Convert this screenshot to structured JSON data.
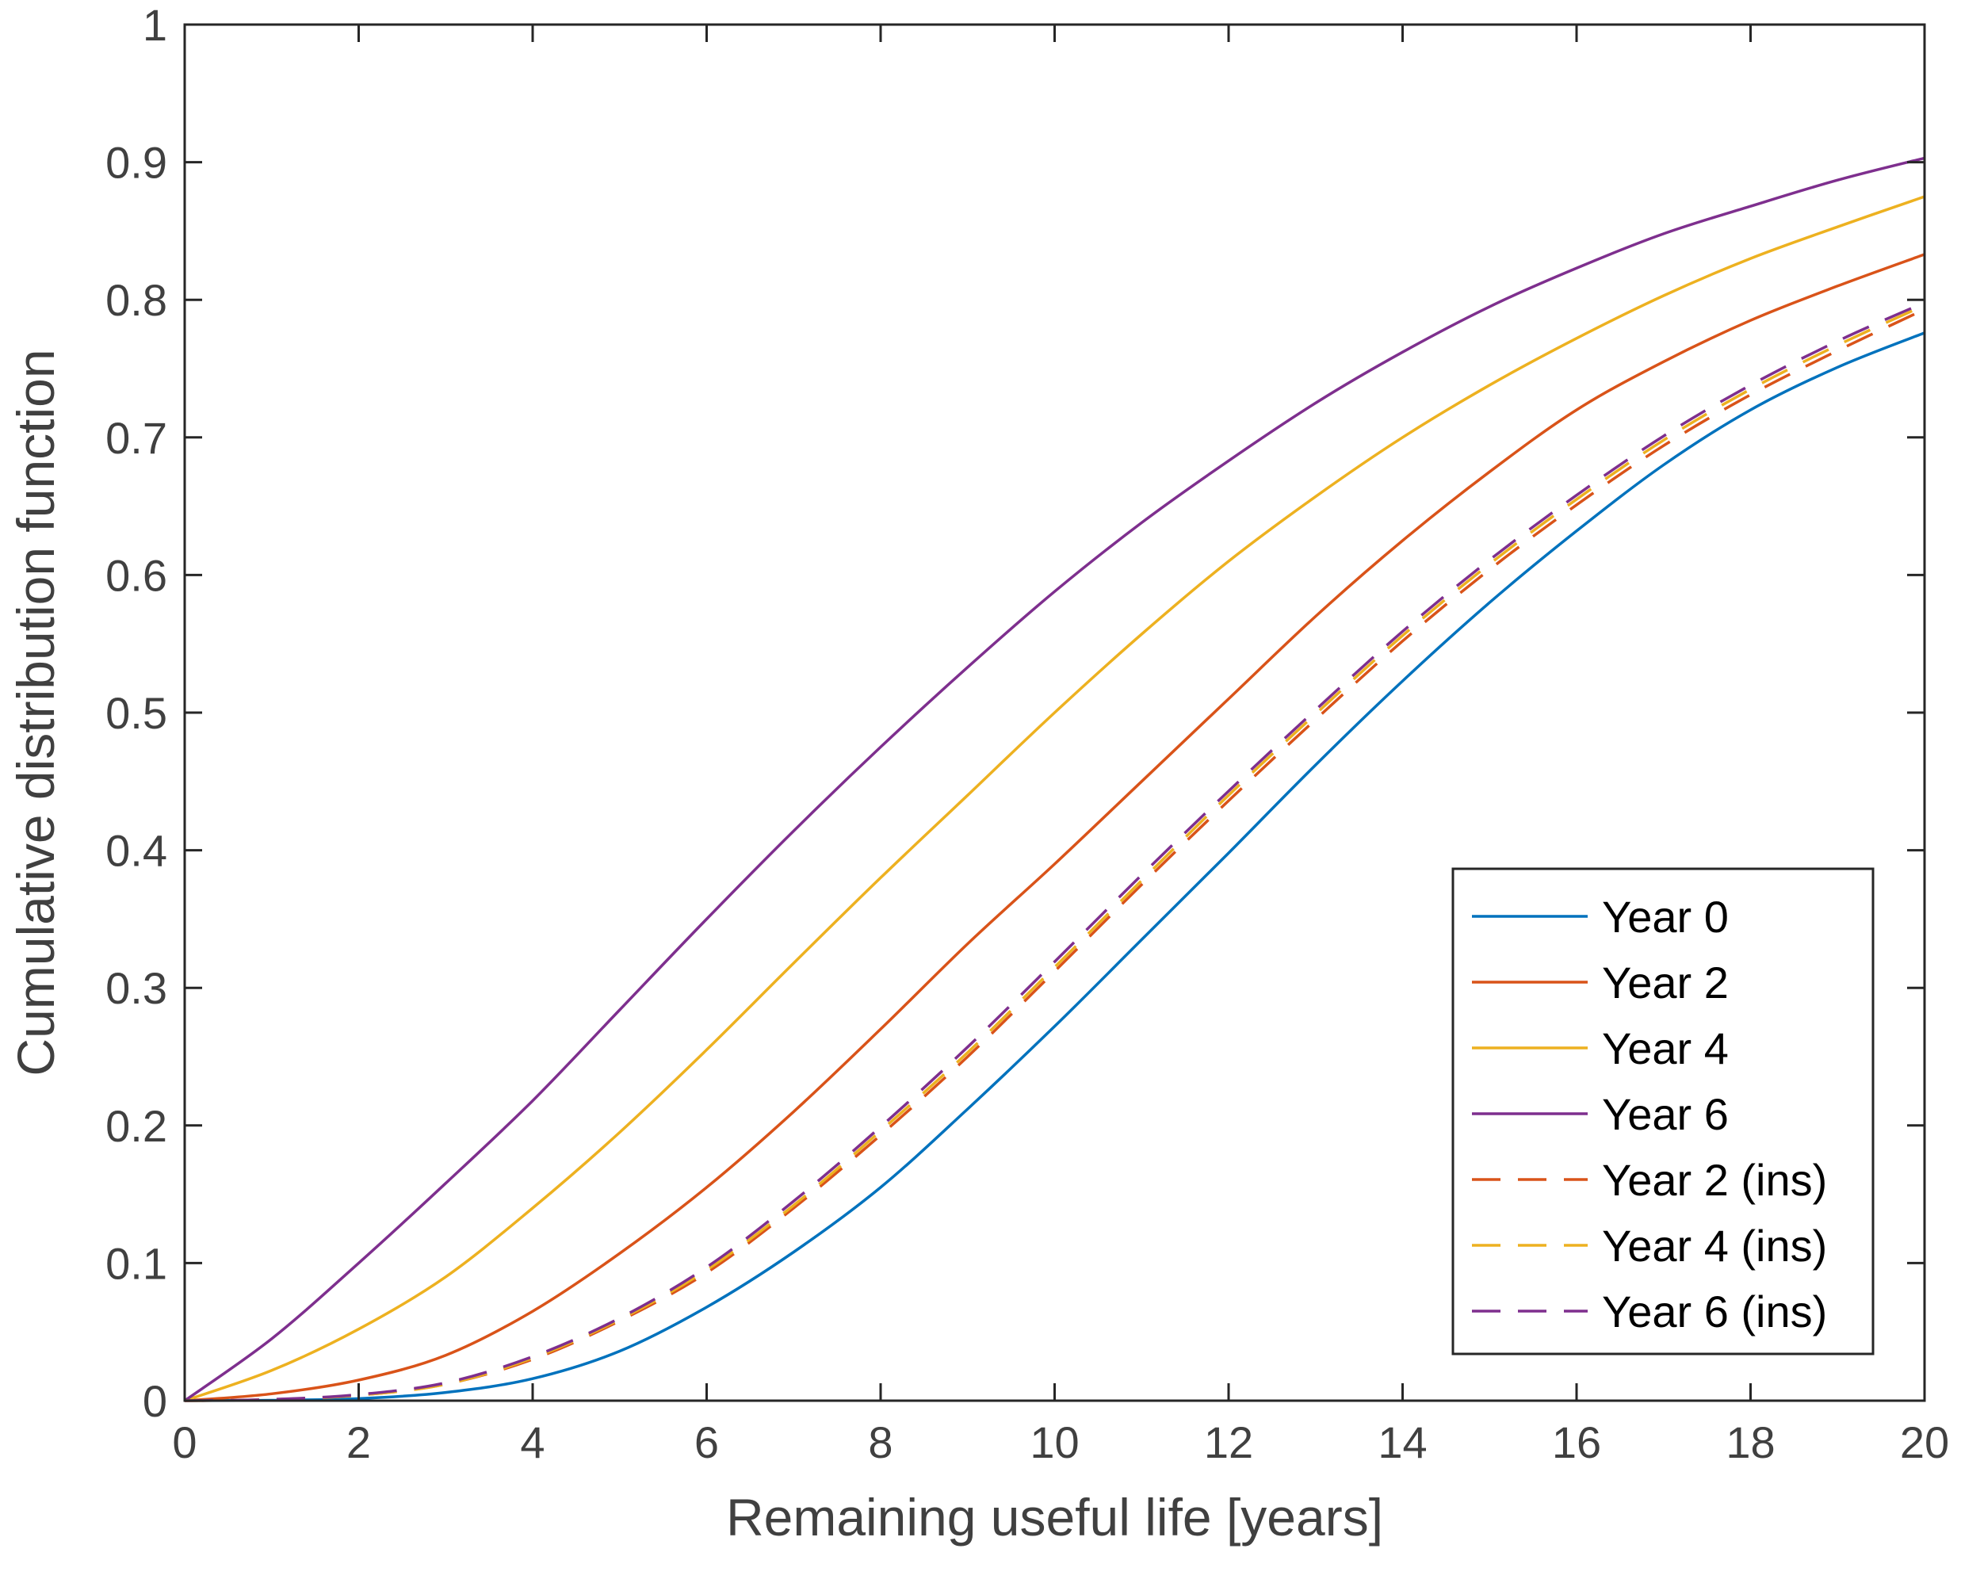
{
  "chart_data": {
    "type": "line",
    "title": "",
    "xlabel": "Remaining useful life [years]",
    "ylabel": "Cumulative distribution function",
    "xlim": [
      0,
      20
    ],
    "ylim": [
      0,
      1
    ],
    "xticks": [
      "0",
      "2",
      "4",
      "6",
      "8",
      "10",
      "12",
      "14",
      "16",
      "18",
      "20"
    ],
    "yticks": [
      "0",
      "0.1",
      "0.2",
      "0.3",
      "0.4",
      "0.5",
      "0.6",
      "0.7",
      "0.8",
      "0.9",
      "1"
    ],
    "legend_position": "lower-right",
    "x": [
      0,
      1,
      2,
      3,
      4,
      5,
      6,
      7,
      8,
      9,
      10,
      11,
      12,
      13,
      14,
      15,
      16,
      17,
      18,
      19,
      20
    ],
    "series": [
      {
        "name": "Year 0",
        "color": "#0072BD",
        "style": "solid",
        "values": [
          0,
          0.0003,
          0.0015,
          0.006,
          0.016,
          0.036,
          0.068,
          0.108,
          0.155,
          0.212,
          0.272,
          0.335,
          0.398,
          0.462,
          0.523,
          0.58,
          0.632,
          0.68,
          0.72,
          0.751,
          0.776
        ]
      },
      {
        "name": "Year 2",
        "color": "#D95319",
        "style": "solid",
        "values": [
          0,
          0.005,
          0.015,
          0.033,
          0.065,
          0.107,
          0.155,
          0.21,
          0.27,
          0.332,
          0.39,
          0.45,
          0.51,
          0.57,
          0.625,
          0.675,
          0.72,
          0.755,
          0.785,
          0.81,
          0.833
        ]
      },
      {
        "name": "Year 4",
        "color": "#EDB120",
        "style": "solid",
        "values": [
          0,
          0.022,
          0.052,
          0.09,
          0.14,
          0.195,
          0.255,
          0.318,
          0.38,
          0.44,
          0.5,
          0.557,
          0.61,
          0.657,
          0.7,
          0.738,
          0.772,
          0.803,
          0.83,
          0.853,
          0.875
        ]
      },
      {
        "name": "Year 6",
        "color": "#7E2F8E",
        "style": "solid",
        "values": [
          0,
          0.045,
          0.1,
          0.158,
          0.218,
          0.284,
          0.35,
          0.414,
          0.475,
          0.533,
          0.588,
          0.638,
          0.683,
          0.725,
          0.762,
          0.795,
          0.823,
          0.848,
          0.868,
          0.887,
          0.903
        ]
      },
      {
        "name": "Year 2 (ins)",
        "color": "#D95319",
        "style": "dashed",
        "values": [
          0,
          0.0008,
          0.004,
          0.012,
          0.03,
          0.058,
          0.093,
          0.14,
          0.193,
          0.25,
          0.312,
          0.375,
          0.436,
          0.495,
          0.552,
          0.604,
          0.651,
          0.694,
          0.731,
          0.763,
          0.793
        ]
      },
      {
        "name": "Year 4 (ins)",
        "color": "#EDB120",
        "style": "dashed",
        "values": [
          0,
          0.0008,
          0.004,
          0.012,
          0.031,
          0.059,
          0.095,
          0.142,
          0.196,
          0.253,
          0.315,
          0.378,
          0.44,
          0.499,
          0.556,
          0.608,
          0.655,
          0.698,
          0.735,
          0.767,
          0.796
        ]
      },
      {
        "name": "Year 6 (ins)",
        "color": "#7E2F8E",
        "style": "dashed",
        "values": [
          0,
          0.0009,
          0.0045,
          0.013,
          0.032,
          0.06,
          0.097,
          0.145,
          0.199,
          0.257,
          0.319,
          0.382,
          0.443,
          0.502,
          0.559,
          0.611,
          0.658,
          0.701,
          0.738,
          0.77,
          0.798
        ]
      }
    ]
  }
}
